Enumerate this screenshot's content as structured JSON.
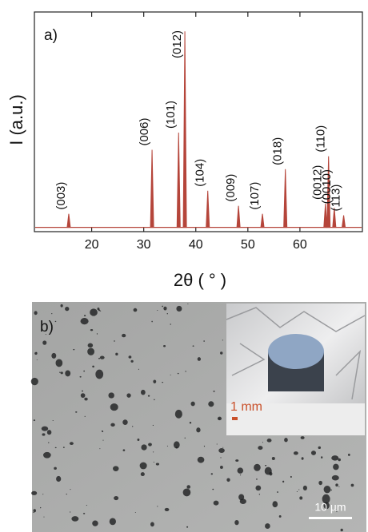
{
  "chart_data": {
    "type": "stem",
    "panel_label": "a)",
    "xlabel": "2θ ( ° )",
    "ylabel": "I (a.u.)",
    "x": [
      15.6,
      31.6,
      36.7,
      37.9,
      42.3,
      48.2,
      52.8,
      57.2,
      64.9,
      65.5,
      66.6,
      68.4
    ],
    "values": [
      6.3,
      36,
      44,
      91,
      17,
      10,
      6.3,
      27,
      11,
      33,
      9,
      5.6
    ],
    "peak_labels": [
      "(003)",
      "(006)",
      "(101)",
      "(012)",
      "(104)",
      "(009)",
      "(107)",
      "(018)",
      "(0012)",
      "(110)",
      "(0010)",
      "(113)"
    ],
    "color": "#b5453a",
    "xlim": [
      9,
      72
    ],
    "ylim": [
      -2,
      100
    ],
    "xticks": [
      20,
      30,
      40,
      50,
      60
    ]
  },
  "micrograph": {
    "panel_label": "b)",
    "inset_scale": "1 mm",
    "scale": "10 µm"
  }
}
